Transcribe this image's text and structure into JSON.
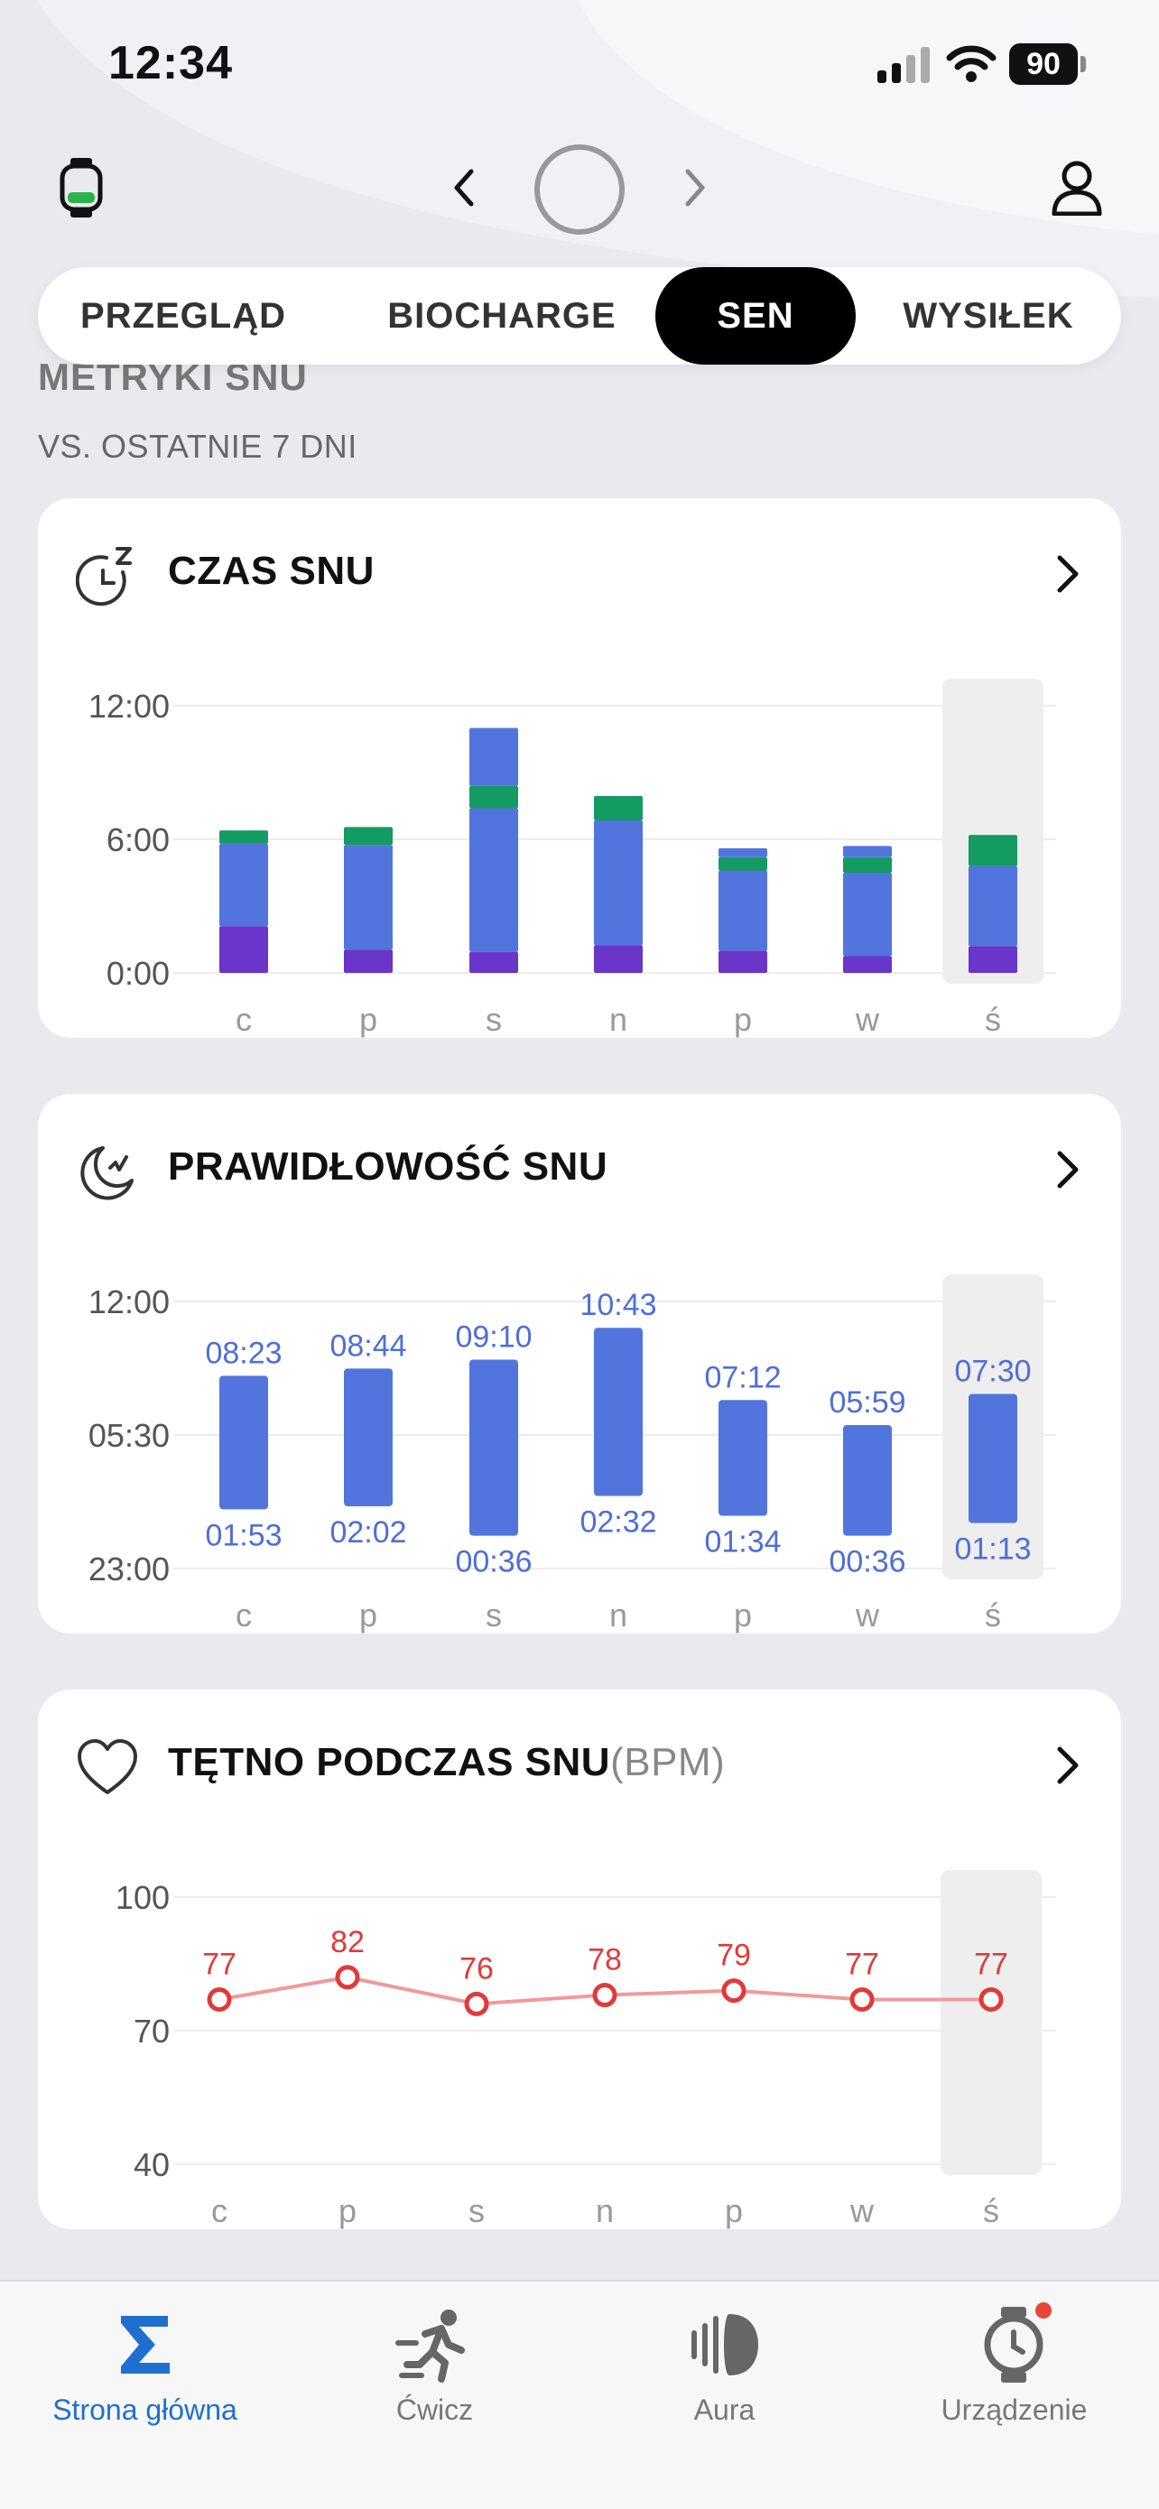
{
  "status_bar": {
    "time": "12:34",
    "battery": "90"
  },
  "tabs": [
    {
      "label": "PRZEGLĄD",
      "active": false
    },
    {
      "label": "BIOCHARGE",
      "active": false
    },
    {
      "label": "SEN",
      "active": true
    },
    {
      "label": "WYSIŁEK",
      "active": false
    }
  ],
  "section": {
    "title": "METRYKI SNU",
    "subtitle": "VS. OSTATNIE 7 DNI"
  },
  "cards": {
    "sleep_time": {
      "title": "CZAS SNU",
      "icon": "sleep-clock-icon"
    },
    "sleep_regularity": {
      "title": "PRAWIDŁOWOŚĆ SNU",
      "icon": "moon-icon"
    },
    "sleep_hr": {
      "title": "TĘTNO PODCZAS SNU",
      "unit": "(BPM)",
      "icon": "heart-icon"
    }
  },
  "colors": {
    "deep": "#6a35c9",
    "light": "#5275dd",
    "rem": "#149b62",
    "line_red": "#e03a3a",
    "line_pink": "#f09a9a",
    "highlight": "#eeeeee",
    "accent": "#1f6fd0",
    "regularity_text": "#4f6fd6"
  },
  "chart_data": [
    {
      "type": "bar",
      "title": "CZAS SNU",
      "categories": [
        "c",
        "p",
        "s",
        "n",
        "p",
        "w",
        "ś"
      ],
      "y_ticks": [
        "12:00",
        "6:00",
        "0:00"
      ],
      "ylim": [
        0,
        12
      ],
      "stacked": true,
      "series": [
        {
          "values": [
            2.1,
            1.05,
            0.95,
            1.25,
            1.0,
            0.75,
            1.2
          ]
        },
        {
          "values": [
            3.7,
            4.7,
            6.45,
            5.6,
            3.6,
            3.75,
            3.6
          ]
        },
        {
          "values": [
            0.6,
            0.8,
            1.0,
            1.1,
            0.6,
            0.7,
            1.4
          ]
        },
        {
          "values": [
            0,
            0,
            2.6,
            0,
            0.4,
            0.5,
            0
          ]
        }
      ],
      "highlight_index": 6
    },
    {
      "type": "bar",
      "title": "PRAWIDŁOWOŚĆ SNU",
      "categories": [
        "c",
        "p",
        "s",
        "n",
        "p",
        "w",
        "ś"
      ],
      "y_ticks": [
        "12:00",
        "05:30",
        "23:00"
      ],
      "ylim_hours_from_23": [
        0,
        13
      ],
      "start_labels": [
        "01:53",
        "02:02",
        "00:36",
        "02:32",
        "01:34",
        "00:36",
        "01:13"
      ],
      "end_labels": [
        "08:23",
        "08:44",
        "09:10",
        "10:43",
        "07:12",
        "05:59",
        "07:30"
      ],
      "start_hours_from_23": [
        2.883,
        3.033,
        1.6,
        3.533,
        2.567,
        1.6,
        2.217
      ],
      "end_hours_from_23": [
        9.383,
        9.733,
        10.167,
        11.717,
        8.2,
        6.983,
        8.5
      ],
      "highlight_index": 6
    },
    {
      "type": "line",
      "title": "TĘTNO PODCZAS SNU",
      "categories": [
        "c",
        "p",
        "s",
        "n",
        "p",
        "w",
        "ś"
      ],
      "y_ticks": [
        "100",
        "70",
        "40"
      ],
      "ylim": [
        40,
        100
      ],
      "values": [
        77,
        82,
        76,
        78,
        79,
        77,
        77
      ],
      "highlight_index": 6
    }
  ],
  "bottom_nav": [
    {
      "label": "Strona główna",
      "icon": "sigma-icon",
      "active": true
    },
    {
      "label": "Ćwicz",
      "icon": "runner-icon",
      "active": false
    },
    {
      "label": "Aura",
      "icon": "aura-icon",
      "active": false
    },
    {
      "label": "Urządzenie",
      "icon": "watch-icon",
      "active": false
    }
  ]
}
